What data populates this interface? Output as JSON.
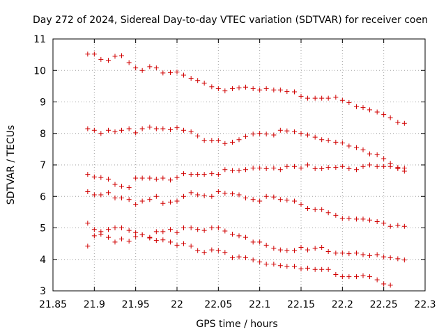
{
  "colors": {
    "points": "#d00000",
    "grid": "#a0a0a0",
    "axes": "#000000"
  },
  "chart_data": {
    "type": "scatter",
    "title": "Day 272 of 2024, Sidereal Day-to-day VTEC variation (SDTVAR) for receiver coen",
    "xlabel": "GPS time / hours",
    "ylabel": "SDTVAR / TECUs",
    "xlim": [
      21.85,
      22.3
    ],
    "ylim": [
      3,
      11
    ],
    "grid": true,
    "marker": "plus",
    "xticks": [
      "21.85",
      "21.9",
      "21.95",
      "22",
      "22.05",
      "22.1",
      "22.15",
      "22.2",
      "22.25",
      "22.3"
    ],
    "yticks": [
      "3",
      "4",
      "5",
      "6",
      "7",
      "8",
      "9",
      "10",
      "11"
    ],
    "series": [
      {
        "name": "track-1",
        "x": [
          21.892,
          21.9,
          21.908,
          21.917,
          21.925,
          21.933,
          21.942,
          21.95,
          21.958,
          21.967,
          21.975,
          21.983,
          21.992,
          22.0,
          22.008,
          22.017,
          22.025,
          22.033,
          22.042,
          22.05,
          22.058,
          22.067,
          22.075,
          22.083,
          22.092,
          22.1,
          22.108,
          22.117,
          22.125,
          22.133,
          22.142,
          22.15,
          22.158,
          22.167,
          22.175,
          22.183,
          22.192,
          22.2,
          22.208,
          22.217,
          22.225,
          22.233,
          22.242,
          22.25,
          22.258,
          22.267,
          22.275
        ],
        "y": [
          10.52,
          10.52,
          10.35,
          10.32,
          10.45,
          10.47,
          10.25,
          10.08,
          10.0,
          10.12,
          10.08,
          9.92,
          9.93,
          9.95,
          9.85,
          9.75,
          9.68,
          9.6,
          9.48,
          9.42,
          9.35,
          9.42,
          9.45,
          9.47,
          9.42,
          9.38,
          9.42,
          9.38,
          9.38,
          9.33,
          9.32,
          9.18,
          9.12,
          9.12,
          9.12,
          9.12,
          9.15,
          9.05,
          8.98,
          8.85,
          8.82,
          8.75,
          8.68,
          8.6,
          8.5,
          8.35,
          8.32
        ]
      },
      {
        "name": "track-2",
        "x": [
          21.892,
          21.9,
          21.908,
          21.917,
          21.925,
          21.933,
          21.942,
          21.95,
          21.958,
          21.967,
          21.975,
          21.983,
          21.992,
          22.0,
          22.008,
          22.017,
          22.025,
          22.033,
          22.042,
          22.05,
          22.058,
          22.067,
          22.075,
          22.083,
          22.092,
          22.1,
          22.108,
          22.117,
          22.125,
          22.133,
          22.142,
          22.15,
          22.158,
          22.167,
          22.175,
          22.183,
          22.192,
          22.2,
          22.208,
          22.217,
          22.225,
          22.233,
          22.242,
          22.25,
          22.258,
          22.267,
          22.275
        ],
        "y": [
          8.15,
          8.1,
          8.0,
          8.1,
          8.05,
          8.1,
          8.15,
          8.02,
          8.15,
          8.2,
          8.15,
          8.15,
          8.12,
          8.18,
          8.1,
          8.05,
          7.92,
          7.78,
          7.78,
          7.78,
          7.68,
          7.72,
          7.8,
          7.9,
          7.98,
          8.0,
          7.98,
          7.95,
          8.1,
          8.08,
          8.05,
          8.0,
          7.95,
          7.88,
          7.8,
          7.78,
          7.72,
          7.7,
          7.6,
          7.55,
          7.48,
          7.35,
          7.32,
          7.2,
          7.05,
          6.92,
          6.9
        ]
      },
      {
        "name": "track-3",
        "x": [
          21.892,
          21.9,
          21.908,
          21.917,
          21.925,
          21.933,
          21.942,
          21.95,
          21.958,
          21.967,
          21.975,
          21.983,
          21.992,
          22.0,
          22.008,
          22.017,
          22.025,
          22.033,
          22.042,
          22.05,
          22.058,
          22.067,
          22.075,
          22.083,
          22.092,
          22.1,
          22.108,
          22.117,
          22.125,
          22.133,
          22.142,
          22.15,
          22.158,
          22.167,
          22.175,
          22.183,
          22.192,
          22.2,
          22.208,
          22.217,
          22.225,
          22.233,
          22.242,
          22.25,
          22.258,
          22.267,
          22.275
        ],
        "y": [
          6.7,
          6.62,
          6.6,
          6.55,
          6.38,
          6.32,
          6.28,
          6.58,
          6.58,
          6.58,
          6.55,
          6.58,
          6.52,
          6.6,
          6.72,
          6.7,
          6.7,
          6.7,
          6.72,
          6.7,
          6.85,
          6.82,
          6.82,
          6.85,
          6.9,
          6.9,
          6.88,
          6.9,
          6.85,
          6.95,
          6.95,
          6.9,
          7.0,
          6.88,
          6.88,
          6.92,
          6.92,
          6.95,
          6.88,
          6.85,
          6.95,
          7.0,
          6.95,
          6.95,
          6.95,
          6.88,
          6.8
        ]
      },
      {
        "name": "track-4",
        "x": [
          21.892,
          21.9,
          21.908,
          21.917,
          21.925,
          21.933,
          21.942,
          21.95,
          21.958,
          21.967,
          21.975,
          21.983,
          21.992,
          22.0,
          22.008,
          22.017,
          22.025,
          22.033,
          22.042,
          22.05,
          22.058,
          22.067,
          22.075,
          22.083,
          22.092,
          22.1,
          22.108,
          22.117,
          22.125,
          22.133,
          22.142,
          22.15,
          22.158,
          22.167,
          22.175,
          22.183,
          22.192,
          22.2,
          22.208,
          22.217,
          22.225,
          22.233,
          22.242,
          22.25,
          22.258,
          22.267,
          22.275
        ],
        "y": [
          6.15,
          6.05,
          6.05,
          6.12,
          5.95,
          5.95,
          5.9,
          5.75,
          5.85,
          5.9,
          6.0,
          5.78,
          5.82,
          5.85,
          6.0,
          6.12,
          6.05,
          6.02,
          6.0,
          6.15,
          6.1,
          6.08,
          6.05,
          5.95,
          5.9,
          5.85,
          6.0,
          5.98,
          5.9,
          5.88,
          5.85,
          5.75,
          5.62,
          5.58,
          5.58,
          5.48,
          5.4,
          5.3,
          5.3,
          5.28,
          5.28,
          5.25,
          5.2,
          5.15,
          5.05,
          5.08,
          5.05
        ]
      },
      {
        "name": "track-5",
        "x": [
          21.892,
          21.9,
          21.908,
          21.917,
          21.925,
          21.933,
          21.942,
          21.95,
          21.958,
          21.967,
          21.975,
          21.983,
          21.992,
          22.0,
          22.008,
          22.017,
          22.025,
          22.033,
          22.042,
          22.05,
          22.058,
          22.067,
          22.075,
          22.083,
          22.092,
          22.1,
          22.108,
          22.117,
          22.125,
          22.133,
          22.142,
          22.15,
          22.158,
          22.167,
          22.175,
          22.183,
          22.192,
          22.2,
          22.208,
          22.217,
          22.225,
          22.233,
          22.242,
          22.25,
          22.258,
          22.267,
          22.275
        ],
        "y": [
          5.15,
          4.95,
          4.88,
          4.95,
          5.0,
          5.0,
          4.92,
          4.85,
          4.78,
          4.7,
          4.88,
          4.88,
          4.95,
          4.85,
          5.0,
          5.0,
          4.95,
          4.92,
          5.0,
          5.0,
          4.9,
          4.8,
          4.75,
          4.7,
          4.55,
          4.55,
          4.45,
          4.35,
          4.3,
          4.28,
          4.28,
          4.38,
          4.3,
          4.35,
          4.38,
          4.25,
          4.2,
          4.2,
          4.18,
          4.2,
          4.15,
          4.12,
          4.15,
          4.08,
          4.05,
          4.02,
          3.98
        ]
      },
      {
        "name": "track-6",
        "x": [
          21.892,
          21.9,
          21.908,
          21.917,
          21.925,
          21.933,
          21.942,
          21.95,
          21.958,
          21.967,
          21.975,
          21.983,
          21.992,
          22.0,
          22.008,
          22.017,
          22.025,
          22.033,
          22.042,
          22.05,
          22.058,
          22.067,
          22.075,
          22.083,
          22.092,
          22.1,
          22.108,
          22.117,
          22.125,
          22.133,
          22.142,
          22.15,
          22.158,
          22.167,
          22.175,
          22.183,
          22.192,
          22.2,
          22.208,
          22.217,
          22.225,
          22.233,
          22.242,
          22.25,
          22.258
        ],
        "y": [
          4.42,
          4.75,
          4.8,
          4.7,
          4.55,
          4.65,
          4.58,
          4.72,
          4.78,
          4.68,
          4.6,
          4.62,
          4.55,
          4.45,
          4.5,
          4.42,
          4.28,
          4.22,
          4.3,
          4.28,
          4.22,
          4.05,
          4.08,
          4.05,
          3.98,
          3.92,
          3.85,
          3.85,
          3.8,
          3.78,
          3.78,
          3.7,
          3.72,
          3.68,
          3.68,
          3.68,
          3.52,
          3.45,
          3.45,
          3.45,
          3.48,
          3.45,
          3.35,
          3.22,
          3.18
        ]
      }
    ]
  }
}
